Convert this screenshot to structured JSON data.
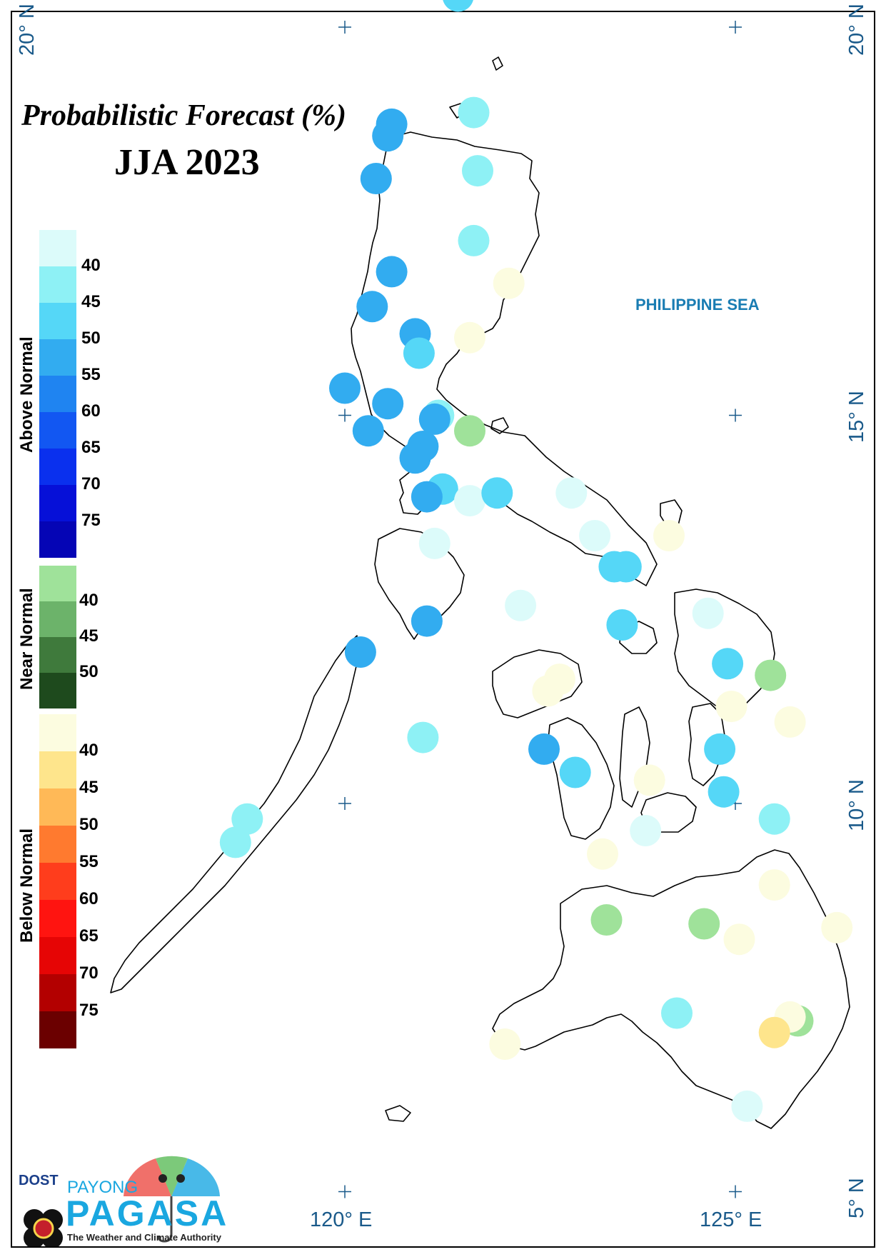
{
  "title": "Probabilistic Forecast (%)",
  "subtitle": "JJA 2023",
  "sea_label": "PHILIPPINE SEA",
  "coordinates": {
    "lat_20_left": "20° N",
    "lat_20_right": "20° N",
    "lat_15_right": "15° N",
    "lat_10_right": "10° N",
    "lat_5_right": "5° N",
    "lon_120": "120° E",
    "lon_125": "125° E"
  },
  "legend": {
    "above_normal": {
      "label": "Above Normal",
      "colors": [
        "#dcfbfa",
        "#8ef1f5",
        "#55d7f7",
        "#32acf0",
        "#1f84f1",
        "#1257f2",
        "#0a30ee",
        "#0610d8",
        "#0505b5"
      ],
      "ticks": [
        "40",
        "45",
        "50",
        "55",
        "60",
        "65",
        "70",
        "75"
      ]
    },
    "near_normal": {
      "label": "Near Normal",
      "colors": [
        "#9fe29a",
        "#6cb36a",
        "#3f7a3c",
        "#1e4a1d"
      ],
      "ticks": [
        "40",
        "45",
        "50"
      ]
    },
    "below_normal": {
      "label": "Below Normal",
      "colors": [
        "#fcfce0",
        "#fee58c",
        "#ffb957",
        "#ff7a2f",
        "#ff3d1c",
        "#ff1410",
        "#e60505",
        "#b30000",
        "#6b0000"
      ],
      "ticks": [
        "40",
        "45",
        "50",
        "55",
        "60",
        "65",
        "70",
        "75"
      ]
    }
  },
  "stations": [
    {
      "lat": 20.4,
      "lon": 121.45,
      "color": "#55d7f7"
    },
    {
      "lat": 18.9,
      "lon": 121.65,
      "color": "#8ef1f5"
    },
    {
      "lat": 18.75,
      "lon": 120.6,
      "color": "#32acf0"
    },
    {
      "lat": 18.6,
      "lon": 120.55,
      "color": "#32acf0"
    },
    {
      "lat": 18.15,
      "lon": 121.7,
      "color": "#8ef1f5"
    },
    {
      "lat": 18.05,
      "lon": 120.4,
      "color": "#32acf0"
    },
    {
      "lat": 17.25,
      "lon": 121.65,
      "color": "#8ef1f5"
    },
    {
      "lat": 16.85,
      "lon": 120.6,
      "color": "#32acf0"
    },
    {
      "lat": 16.7,
      "lon": 122.1,
      "color": "#fcfce0"
    },
    {
      "lat": 16.4,
      "lon": 120.35,
      "color": "#32acf0"
    },
    {
      "lat": 16.05,
      "lon": 120.9,
      "color": "#32acf0"
    },
    {
      "lat": 16.0,
      "lon": 121.6,
      "color": "#fcfce0"
    },
    {
      "lat": 15.8,
      "lon": 120.95,
      "color": "#55d7f7"
    },
    {
      "lat": 15.35,
      "lon": 120.0,
      "color": "#32acf0"
    },
    {
      "lat": 15.15,
      "lon": 120.55,
      "color": "#32acf0"
    },
    {
      "lat": 15.0,
      "lon": 121.2,
      "color": "#8ef1f5"
    },
    {
      "lat": 14.95,
      "lon": 121.15,
      "color": "#32acf0"
    },
    {
      "lat": 14.8,
      "lon": 121.6,
      "color": "#9fe29a"
    },
    {
      "lat": 14.8,
      "lon": 120.3,
      "color": "#32acf0"
    },
    {
      "lat": 14.6,
      "lon": 121.0,
      "color": "#32acf0"
    },
    {
      "lat": 14.45,
      "lon": 120.9,
      "color": "#32acf0"
    },
    {
      "lat": 14.05,
      "lon": 121.25,
      "color": "#55d7f7"
    },
    {
      "lat": 13.95,
      "lon": 121.05,
      "color": "#32acf0"
    },
    {
      "lat": 13.9,
      "lon": 121.6,
      "color": "#dcfbfa"
    },
    {
      "lat": 14.0,
      "lon": 121.95,
      "color": "#55d7f7"
    },
    {
      "lat": 14.0,
      "lon": 122.9,
      "color": "#dcfbfa"
    },
    {
      "lat": 13.45,
      "lon": 123.2,
      "color": "#dcfbfa"
    },
    {
      "lat": 13.45,
      "lon": 124.15,
      "color": "#fcfce0"
    },
    {
      "lat": 13.35,
      "lon": 121.15,
      "color": "#dcfbfa"
    },
    {
      "lat": 13.05,
      "lon": 123.6,
      "color": "#55d7f7"
    },
    {
      "lat": 13.05,
      "lon": 123.45,
      "color": "#55d7f7"
    },
    {
      "lat": 12.55,
      "lon": 122.25,
      "color": "#dcfbfa"
    },
    {
      "lat": 12.45,
      "lon": 124.65,
      "color": "#dcfbfa"
    },
    {
      "lat": 12.35,
      "lon": 121.05,
      "color": "#32acf0"
    },
    {
      "lat": 12.3,
      "lon": 123.55,
      "color": "#55d7f7"
    },
    {
      "lat": 11.95,
      "lon": 120.2,
      "color": "#32acf0"
    },
    {
      "lat": 11.8,
      "lon": 124.9,
      "color": "#55d7f7"
    },
    {
      "lat": 11.65,
      "lon": 125.45,
      "color": "#9fe29a"
    },
    {
      "lat": 11.6,
      "lon": 122.75,
      "color": "#fcfce0"
    },
    {
      "lat": 11.45,
      "lon": 122.6,
      "color": "#fcfce0"
    },
    {
      "lat": 11.25,
      "lon": 124.95,
      "color": "#fcfce0"
    },
    {
      "lat": 11.05,
      "lon": 125.7,
      "color": "#fcfce0"
    },
    {
      "lat": 10.85,
      "lon": 121.0,
      "color": "#8ef1f5"
    },
    {
      "lat": 10.7,
      "lon": 122.55,
      "color": "#32acf0"
    },
    {
      "lat": 10.7,
      "lon": 124.8,
      "color": "#55d7f7"
    },
    {
      "lat": 10.4,
      "lon": 122.95,
      "color": "#55d7f7"
    },
    {
      "lat": 10.3,
      "lon": 123.9,
      "color": "#fcfce0"
    },
    {
      "lat": 10.15,
      "lon": 124.85,
      "color": "#55d7f7"
    },
    {
      "lat": 9.8,
      "lon": 118.75,
      "color": "#8ef1f5"
    },
    {
      "lat": 9.8,
      "lon": 125.5,
      "color": "#8ef1f5"
    },
    {
      "lat": 9.65,
      "lon": 123.85,
      "color": "#dcfbfa"
    },
    {
      "lat": 9.5,
      "lon": 118.6,
      "color": "#8ef1f5"
    },
    {
      "lat": 9.35,
      "lon": 123.3,
      "color": "#fcfce0"
    },
    {
      "lat": 8.95,
      "lon": 125.5,
      "color": "#fcfce0"
    },
    {
      "lat": 8.5,
      "lon": 123.35,
      "color": "#9fe29a"
    },
    {
      "lat": 8.45,
      "lon": 124.6,
      "color": "#9fe29a"
    },
    {
      "lat": 8.4,
      "lon": 126.3,
      "color": "#fcfce0"
    },
    {
      "lat": 8.25,
      "lon": 125.05,
      "color": "#fcfce0"
    },
    {
      "lat": 7.3,
      "lon": 124.25,
      "color": "#8ef1f5"
    },
    {
      "lat": 7.2,
      "lon": 125.8,
      "color": "#9fe29a"
    },
    {
      "lat": 7.25,
      "lon": 125.7,
      "color": "#fcfce0"
    },
    {
      "lat": 7.05,
      "lon": 125.5,
      "color": "#fee58c"
    },
    {
      "lat": 6.9,
      "lon": 122.05,
      "color": "#fcfce0"
    },
    {
      "lat": 6.1,
      "lon": 125.15,
      "color": "#dcfbfa"
    }
  ],
  "logo": {
    "dost": "DOST",
    "payong": "PAYONG",
    "pagasa": "PAGASA",
    "tagline": "The Weather and Climate Authority"
  }
}
